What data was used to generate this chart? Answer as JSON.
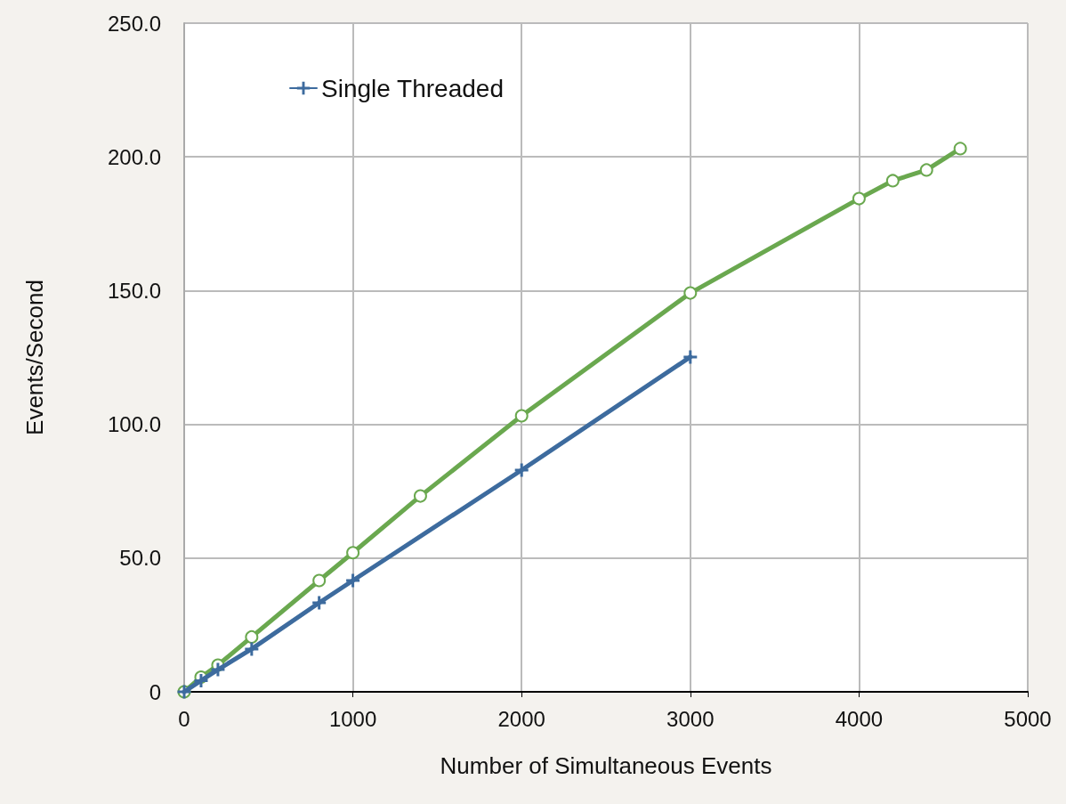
{
  "chart_data": {
    "type": "line",
    "xlabel": "Number of Simultaneous Events",
    "ylabel": "Events/Second",
    "xlim": [
      0,
      5000
    ],
    "xticks": [
      0,
      1000,
      2000,
      3000,
      4000,
      5000
    ],
    "ylim": [
      0,
      250
    ],
    "yticks": [
      0,
      {
        "value": 50,
        "label": "50.0"
      },
      {
        "value": 100,
        "label": "100.0"
      },
      {
        "value": 150,
        "label": "150.0"
      },
      {
        "value": 200,
        "label": "200.0"
      },
      {
        "value": 250,
        "label": "250.0"
      }
    ],
    "grid": true,
    "legend": "top left",
    "line_style": "solid",
    "series": [
      {
        "name": "Single Threaded",
        "color": "#3d6b9e",
        "marker": "cross",
        "x": [
          0,
          100,
          200,
          400,
          800,
          1000,
          2000,
          3000
        ],
        "values": [
          0,
          4.2,
          8.3,
          16,
          33.3,
          41.6,
          82.9,
          125.2
        ]
      },
      {
        "color": "#6aa84f",
        "marker": "circle",
        "x": [
          0,
          100,
          200,
          400,
          800,
          1000,
          1400,
          2000,
          3000,
          4000,
          4200,
          4400,
          4600
        ],
        "values": [
          0,
          5.5,
          10,
          20.5,
          41.6,
          52,
          73.2,
          103.2,
          149.1,
          184.4,
          191.1,
          195.1,
          203.1
        ]
      }
    ]
  }
}
